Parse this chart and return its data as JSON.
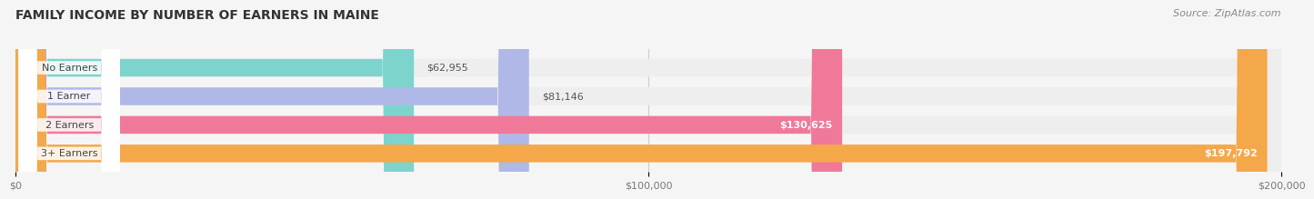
{
  "title": "FAMILY INCOME BY NUMBER OF EARNERS IN MAINE",
  "source": "Source: ZipAtlas.com",
  "categories": [
    "No Earners",
    "1 Earner",
    "2 Earners",
    "3+ Earners"
  ],
  "values": [
    62955,
    81146,
    130625,
    197792
  ],
  "bar_colors": [
    "#7dd4cc",
    "#b0b8e8",
    "#f07898",
    "#f5a84a"
  ],
  "bar_bg_colors": [
    "#eeeeee",
    "#eeeeee",
    "#eeeeee",
    "#eeeeee"
  ],
  "value_labels": [
    "$62,955",
    "$81,146",
    "$130,625",
    "$197,792"
  ],
  "value_inside": [
    false,
    false,
    true,
    true
  ],
  "xlim": [
    0,
    200000
  ],
  "xticks": [
    0,
    100000,
    200000
  ],
  "xtick_labels": [
    "$0",
    "$100,000",
    "$200,000"
  ],
  "background_color": "#f5f5f5",
  "title_fontsize": 10,
  "source_fontsize": 8,
  "label_fontsize": 8,
  "value_fontsize": 8
}
